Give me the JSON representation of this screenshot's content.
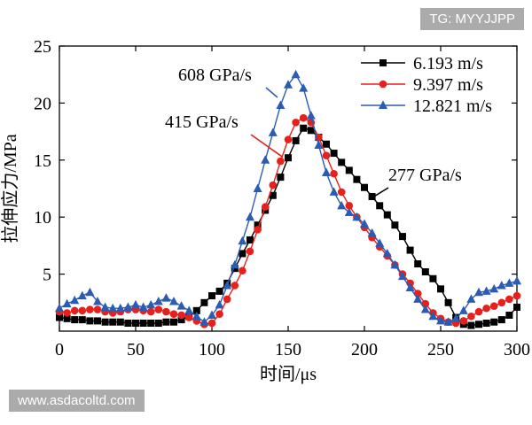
{
  "badges": {
    "top": "TG: MYYJJPP",
    "bottom": "www.asdacoltd.com"
  },
  "chart_data": {
    "type": "line",
    "xlabel": "时间/μs",
    "ylabel": "拉伸应力/MPa",
    "xlim": [
      0,
      300
    ],
    "ylim": [
      0,
      25
    ],
    "xticks": [
      0,
      50,
      100,
      150,
      200,
      250,
      300
    ],
    "yticks": [
      5,
      10,
      15,
      20,
      25
    ],
    "legend_position": "top-right",
    "series": [
      {
        "name": "6.193 m/s",
        "color": "#000000",
        "marker": "square",
        "x": [
          0,
          5,
          10,
          15,
          20,
          25,
          30,
          35,
          40,
          45,
          50,
          55,
          60,
          65,
          70,
          75,
          80,
          85,
          90,
          95,
          100,
          105,
          110,
          115,
          120,
          125,
          130,
          135,
          140,
          145,
          150,
          155,
          160,
          165,
          170,
          175,
          180,
          185,
          190,
          195,
          200,
          205,
          210,
          215,
          220,
          225,
          230,
          235,
          240,
          245,
          250,
          255,
          260,
          265,
          270,
          275,
          280,
          285,
          290,
          295,
          300
        ],
        "y": [
          1.2,
          1.1,
          1.0,
          1.0,
          0.9,
          0.9,
          0.8,
          0.8,
          0.8,
          0.7,
          0.7,
          0.7,
          0.7,
          0.7,
          0.8,
          0.8,
          1.0,
          1.3,
          1.8,
          2.5,
          3.1,
          3.5,
          4.2,
          5.5,
          6.8,
          8.0,
          9.3,
          10.6,
          11.9,
          13.5,
          15.2,
          16.7,
          17.8,
          17.6,
          17.0,
          16.4,
          15.6,
          14.8,
          14.1,
          13.3,
          12.6,
          11.8,
          11.0,
          10.2,
          9.3,
          8.3,
          7.1,
          5.9,
          5.2,
          4.6,
          3.7,
          2.5,
          1.2,
          0.6,
          0.5,
          0.6,
          0.7,
          0.8,
          1.0,
          1.4,
          2.1
        ]
      },
      {
        "name": "9.397 m/s",
        "color": "#e8201b",
        "marker": "circle",
        "x": [
          0,
          5,
          10,
          15,
          20,
          25,
          30,
          35,
          40,
          45,
          50,
          55,
          60,
          65,
          70,
          75,
          80,
          85,
          90,
          95,
          100,
          105,
          110,
          115,
          120,
          125,
          130,
          135,
          140,
          145,
          150,
          155,
          160,
          165,
          170,
          175,
          180,
          185,
          190,
          195,
          200,
          205,
          210,
          215,
          220,
          225,
          230,
          235,
          240,
          245,
          250,
          255,
          260,
          265,
          270,
          275,
          280,
          285,
          290,
          295,
          300
        ],
        "y": [
          1.7,
          1.6,
          1.8,
          1.8,
          1.9,
          1.9,
          1.7,
          1.6,
          1.7,
          1.9,
          1.9,
          1.8,
          1.7,
          1.9,
          1.7,
          1.5,
          1.4,
          1.2,
          0.9,
          0.6,
          0.7,
          1.5,
          2.8,
          4.0,
          5.3,
          7.0,
          8.9,
          10.9,
          12.8,
          14.9,
          16.8,
          18.3,
          18.7,
          18.3,
          17.0,
          15.4,
          13.8,
          12.2,
          11.0,
          10.0,
          9.1,
          8.2,
          7.4,
          6.6,
          5.8,
          5.0,
          4.2,
          3.3,
          2.4,
          1.6,
          1.1,
          0.8,
          0.7,
          0.9,
          1.3,
          1.7,
          2.0,
          2.2,
          2.5,
          2.8,
          3.1
        ]
      },
      {
        "name": "12.821 m/s",
        "color": "#2a5cb4",
        "marker": "triangle",
        "x": [
          0,
          5,
          10,
          15,
          20,
          25,
          30,
          35,
          40,
          45,
          50,
          55,
          60,
          65,
          70,
          75,
          80,
          85,
          90,
          95,
          100,
          105,
          110,
          115,
          120,
          125,
          130,
          135,
          140,
          145,
          150,
          155,
          160,
          165,
          170,
          175,
          180,
          185,
          190,
          195,
          200,
          205,
          210,
          215,
          220,
          225,
          230,
          235,
          240,
          245,
          250,
          255,
          260,
          265,
          270,
          275,
          280,
          285,
          290,
          295,
          300
        ],
        "y": [
          2.0,
          2.4,
          2.7,
          3.1,
          3.4,
          2.6,
          2.1,
          2.0,
          2.0,
          2.1,
          2.3,
          2.1,
          2.3,
          2.6,
          2.9,
          2.6,
          2.2,
          1.8,
          1.3,
          0.8,
          1.4,
          2.3,
          4.0,
          5.8,
          7.9,
          10.0,
          12.5,
          15.0,
          17.4,
          19.8,
          21.6,
          22.5,
          21.3,
          18.9,
          16.3,
          13.9,
          12.2,
          11.0,
          10.4,
          10.0,
          9.4,
          8.6,
          7.7,
          6.8,
          5.8,
          4.8,
          3.8,
          2.8,
          1.9,
          1.3,
          0.9,
          0.8,
          1.1,
          1.8,
          2.8,
          3.4,
          3.5,
          3.7,
          4.0,
          4.2,
          4.4
        ]
      }
    ],
    "annotations": [
      {
        "text": "608 GPa/s",
        "series_index": 2,
        "at_x": 143,
        "at_y": 20.5
      },
      {
        "text": "415 GPa/s",
        "series_index": 1,
        "at_x": 146,
        "at_y": 15.3
      },
      {
        "text": "277 GPa/s",
        "series_index": 0,
        "at_x": 205,
        "at_y": 11.7
      }
    ]
  }
}
